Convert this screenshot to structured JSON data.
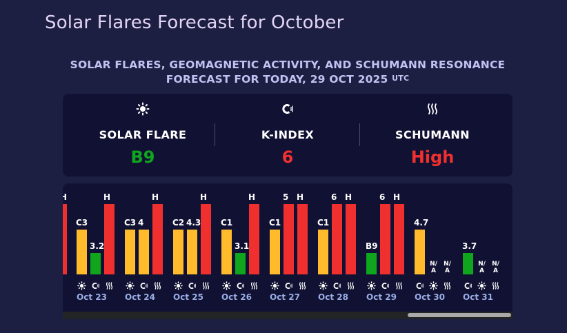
{
  "page": {
    "title": "Solar Flares Forecast for October"
  },
  "forecast": {
    "heading_line1": "SOLAR FLARES, GEOMAGNETIC ACTIVITY, AND SCHUMANN RESONANCE",
    "heading_line2": "FORECAST FOR TODAY, 29 OCT 2025",
    "heading_tz": "UTC"
  },
  "summary": [
    {
      "icon": "sun-icon",
      "label": "SOLAR FLARE",
      "value": "B9",
      "color": "#0fa51d"
    },
    {
      "icon": "magnet-icon",
      "label": "K-INDEX",
      "value": "6",
      "color": "#f0302f"
    },
    {
      "icon": "schumann-waves-icon",
      "label": "SCHUMANN",
      "value": "High",
      "color": "#f0302f"
    }
  ],
  "colors": {
    "yellow": "#ffbb2b",
    "green": "#0fa51d",
    "red": "#f0302f"
  },
  "timeline": {
    "partial_label": "H",
    "days": [
      {
        "date": "Oct 23",
        "flare": {
          "label": "C3",
          "level": 0.64,
          "color": "yellow"
        },
        "kindex": {
          "label": "3.2",
          "level": 0.3,
          "color": "green"
        },
        "schumann": {
          "label": "H",
          "level": 1.0,
          "color": "red"
        },
        "icons": [
          "sun-icon",
          "magnet-icon",
          "schumann-waves-icon"
        ]
      },
      {
        "date": "Oct 24",
        "flare": {
          "label": "C3",
          "level": 0.64,
          "color": "yellow"
        },
        "kindex": {
          "label": "4",
          "level": 0.64,
          "color": "yellow"
        },
        "schumann": {
          "label": "H",
          "level": 1.0,
          "color": "red"
        },
        "icons": [
          "sun-icon",
          "magnet-icon",
          "schumann-waves-icon"
        ]
      },
      {
        "date": "Oct 25",
        "flare": {
          "label": "C2",
          "level": 0.64,
          "color": "yellow"
        },
        "kindex": {
          "label": "4.3",
          "level": 0.64,
          "color": "yellow"
        },
        "schumann": {
          "label": "H",
          "level": 1.0,
          "color": "red"
        },
        "icons": [
          "sun-icon",
          "magnet-icon",
          "schumann-waves-icon"
        ]
      },
      {
        "date": "Oct 26",
        "flare": {
          "label": "C1",
          "level": 0.64,
          "color": "yellow"
        },
        "kindex": {
          "label": "3.1",
          "level": 0.3,
          "color": "green"
        },
        "schumann": {
          "label": "H",
          "level": 1.0,
          "color": "red"
        },
        "icons": [
          "sun-icon",
          "magnet-icon",
          "schumann-waves-icon"
        ]
      },
      {
        "date": "Oct 27",
        "flare": {
          "label": "C1",
          "level": 0.64,
          "color": "yellow"
        },
        "kindex": {
          "label": "5",
          "level": 1.0,
          "color": "red"
        },
        "schumann": {
          "label": "H",
          "level": 1.0,
          "color": "red"
        },
        "icons": [
          "sun-icon",
          "magnet-icon",
          "schumann-waves-icon"
        ]
      },
      {
        "date": "Oct 28",
        "flare": {
          "label": "C1",
          "level": 0.64,
          "color": "yellow"
        },
        "kindex": {
          "label": "6",
          "level": 1.0,
          "color": "red"
        },
        "schumann": {
          "label": "H",
          "level": 1.0,
          "color": "red"
        },
        "icons": [
          "sun-icon",
          "magnet-icon",
          "schumann-waves-icon"
        ]
      },
      {
        "date": "Oct 29",
        "flare": {
          "label": "B9",
          "level": 0.3,
          "color": "green"
        },
        "kindex": {
          "label": "6",
          "level": 1.0,
          "color": "red"
        },
        "schumann": {
          "label": "H",
          "level": 1.0,
          "color": "red"
        },
        "icons": [
          "sun-icon",
          "magnet-icon",
          "schumann-waves-icon"
        ]
      },
      {
        "date": "Oct 30",
        "flare": {
          "label": "4.7",
          "level": 0.64,
          "color": "yellow"
        },
        "kindex": {
          "label": "N/ A",
          "level": 0,
          "color": ""
        },
        "schumann": {
          "label": "N/ A",
          "level": 0,
          "color": ""
        },
        "icons": [
          "magnet-icon",
          "sun-icon",
          "schumann-waves-icon"
        ]
      },
      {
        "date": "Oct 31",
        "flare": {
          "label": "3.7",
          "level": 0.3,
          "color": "green"
        },
        "kindex": {
          "label": "N/ A",
          "level": 0,
          "color": ""
        },
        "schumann": {
          "label": "N/ A",
          "level": 0,
          "color": ""
        },
        "icons": [
          "magnet-icon",
          "sun-icon",
          "schumann-waves-icon"
        ]
      }
    ]
  },
  "scrollbar": {
    "position": 1.0
  }
}
